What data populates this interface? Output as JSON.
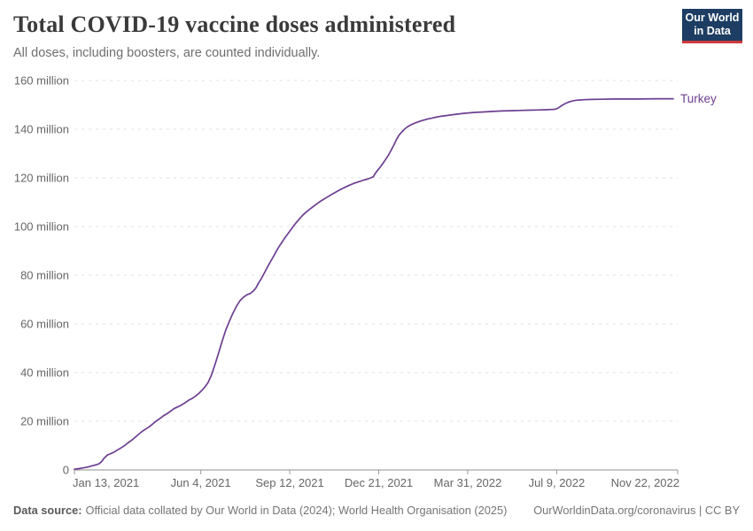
{
  "logo": {
    "line1": "Our World",
    "line2": "in Data",
    "bg": "#1d3d63",
    "accent": "#cf3b3c"
  },
  "footer": {
    "source_label": "Data source:",
    "source_text": "Official data collated by Our World in Data (2024); World Health Organisation (2025)",
    "link": "OurWorldinData.org/coronavirus | CC BY"
  },
  "chart_data": {
    "type": "line",
    "title": "Total COVID-19 vaccine doses administered",
    "subtitle": "All doses, including boosters, are counted individually.",
    "xlabel": "",
    "ylabel": "",
    "y_unit": "million doses",
    "ylim": [
      0,
      160
    ],
    "xlim_days": [
      0,
      678
    ],
    "x_epoch": "2021-01-13",
    "grid": "horizontal-dashed",
    "legend_position": "end-of-line",
    "colors": {
      "grid": "#e2e2e2",
      "axis": "#8f8f8f",
      "tick": "#9a9a9a",
      "tick_label": "#666666"
    },
    "y_ticks": [
      {
        "label": "0",
        "value": 0
      },
      {
        "label": "20 million",
        "value": 20
      },
      {
        "label": "40 million",
        "value": 40
      },
      {
        "label": "60 million",
        "value": 60
      },
      {
        "label": "80 million",
        "value": 80
      },
      {
        "label": "100 million",
        "value": 100
      },
      {
        "label": "120 million",
        "value": 120
      },
      {
        "label": "140 million",
        "value": 140
      },
      {
        "label": "160 million",
        "value": 160
      }
    ],
    "x_ticks": [
      {
        "label": "Jan 13, 2021",
        "day": 0
      },
      {
        "label": "Jun 4, 2021",
        "day": 142
      },
      {
        "label": "Sep 12, 2021",
        "day": 242
      },
      {
        "label": "Dec 21, 2021",
        "day": 342
      },
      {
        "label": "Mar 31, 2022",
        "day": 442
      },
      {
        "label": "Jul 9, 2022",
        "day": 542
      },
      {
        "label": "Nov 22, 2022",
        "day": 678
      }
    ],
    "series": [
      {
        "name": "Turkey",
        "color": "#6d3e91",
        "points_day_value_millions": [
          [
            0,
            0.3
          ],
          [
            5,
            0.55
          ],
          [
            10,
            0.85
          ],
          [
            15,
            1.2
          ],
          [
            20,
            1.7
          ],
          [
            25,
            2.2
          ],
          [
            28,
            2.6
          ],
          [
            31,
            3.6
          ],
          [
            33,
            4.7
          ],
          [
            35,
            5.4
          ],
          [
            37,
            6.1
          ],
          [
            40,
            6.6
          ],
          [
            44,
            7.2
          ],
          [
            48,
            8.1
          ],
          [
            52,
            9.0
          ],
          [
            56,
            9.9
          ],
          [
            60,
            11.1
          ],
          [
            64,
            12.1
          ],
          [
            68,
            13.3
          ],
          [
            72,
            14.6
          ],
          [
            76,
            15.8
          ],
          [
            80,
            16.8
          ],
          [
            84,
            17.7
          ],
          [
            88,
            18.9
          ],
          [
            92,
            20.1
          ],
          [
            96,
            21.1
          ],
          [
            100,
            22.2
          ],
          [
            104,
            23.1
          ],
          [
            108,
            24.1
          ],
          [
            112,
            25.2
          ],
          [
            116,
            25.9
          ],
          [
            120,
            26.6
          ],
          [
            124,
            27.5
          ],
          [
            128,
            28.6
          ],
          [
            132,
            29.3
          ],
          [
            136,
            30.3
          ],
          [
            140,
            31.5
          ],
          [
            143,
            32.6
          ],
          [
            146,
            33.8
          ],
          [
            150,
            35.8
          ],
          [
            154,
            39.0
          ],
          [
            158,
            43.3
          ],
          [
            162,
            48.0
          ],
          [
            166,
            52.8
          ],
          [
            170,
            57.4
          ],
          [
            174,
            61.0
          ],
          [
            178,
            64.3
          ],
          [
            182,
            67.2
          ],
          [
            186,
            69.5
          ],
          [
            190,
            71.0
          ],
          [
            194,
            72.0
          ],
          [
            198,
            72.6
          ],
          [
            201,
            73.5
          ],
          [
            204,
            74.8
          ],
          [
            207,
            76.8
          ],
          [
            210,
            78.6
          ],
          [
            213,
            80.6
          ],
          [
            217,
            83.4
          ],
          [
            221,
            86.0
          ],
          [
            225,
            88.6
          ],
          [
            229,
            91.2
          ],
          [
            233,
            93.4
          ],
          [
            237,
            95.6
          ],
          [
            241,
            97.6
          ],
          [
            245,
            99.6
          ],
          [
            249,
            101.5
          ],
          [
            253,
            103.2
          ],
          [
            257,
            104.8
          ],
          [
            261,
            106.1
          ],
          [
            265,
            107.3
          ],
          [
            269,
            108.4
          ],
          [
            273,
            109.5
          ],
          [
            277,
            110.5
          ],
          [
            281,
            111.4
          ],
          [
            285,
            112.3
          ],
          [
            289,
            113.2
          ],
          [
            293,
            114.0
          ],
          [
            297,
            114.8
          ],
          [
            301,
            115.6
          ],
          [
            305,
            116.3
          ],
          [
            309,
            117.0
          ],
          [
            313,
            117.6
          ],
          [
            317,
            118.1
          ],
          [
            321,
            118.6
          ],
          [
            325,
            119.1
          ],
          [
            329,
            119.5
          ],
          [
            333,
            120.0
          ],
          [
            336,
            120.5
          ],
          [
            338,
            121.8
          ],
          [
            341,
            123.2
          ],
          [
            344,
            124.6
          ],
          [
            347,
            126.1
          ],
          [
            350,
            127.7
          ],
          [
            353,
            129.4
          ],
          [
            356,
            131.4
          ],
          [
            359,
            133.5
          ],
          [
            362,
            135.8
          ],
          [
            365,
            137.6
          ],
          [
            368,
            138.9
          ],
          [
            371,
            140.0
          ],
          [
            374,
            140.9
          ],
          [
            377,
            141.6
          ],
          [
            380,
            142.1
          ],
          [
            383,
            142.6
          ],
          [
            386,
            143.0
          ],
          [
            390,
            143.5
          ],
          [
            394,
            143.9
          ],
          [
            398,
            144.3
          ],
          [
            402,
            144.6
          ],
          [
            406,
            144.9
          ],
          [
            410,
            145.2
          ],
          [
            414,
            145.4
          ],
          [
            418,
            145.6
          ],
          [
            422,
            145.8
          ],
          [
            426,
            146.0
          ],
          [
            430,
            146.2
          ],
          [
            435,
            146.4
          ],
          [
            440,
            146.6
          ],
          [
            450,
            146.9
          ],
          [
            460,
            147.1
          ],
          [
            470,
            147.3
          ],
          [
            480,
            147.5
          ],
          [
            490,
            147.6
          ],
          [
            500,
            147.7
          ],
          [
            510,
            147.8
          ],
          [
            520,
            147.9
          ],
          [
            530,
            148.0
          ],
          [
            536,
            148.1
          ],
          [
            540,
            148.2
          ],
          [
            543,
            148.6
          ],
          [
            546,
            149.3
          ],
          [
            549,
            150.0
          ],
          [
            552,
            150.6
          ],
          [
            555,
            151.1
          ],
          [
            558,
            151.4
          ],
          [
            561,
            151.7
          ],
          [
            564,
            151.9
          ],
          [
            568,
            152.0
          ],
          [
            572,
            152.1
          ],
          [
            580,
            152.2
          ],
          [
            590,
            152.3
          ],
          [
            605,
            152.4
          ],
          [
            630,
            152.4
          ],
          [
            655,
            152.5
          ],
          [
            673,
            152.5
          ]
        ]
      }
    ]
  }
}
